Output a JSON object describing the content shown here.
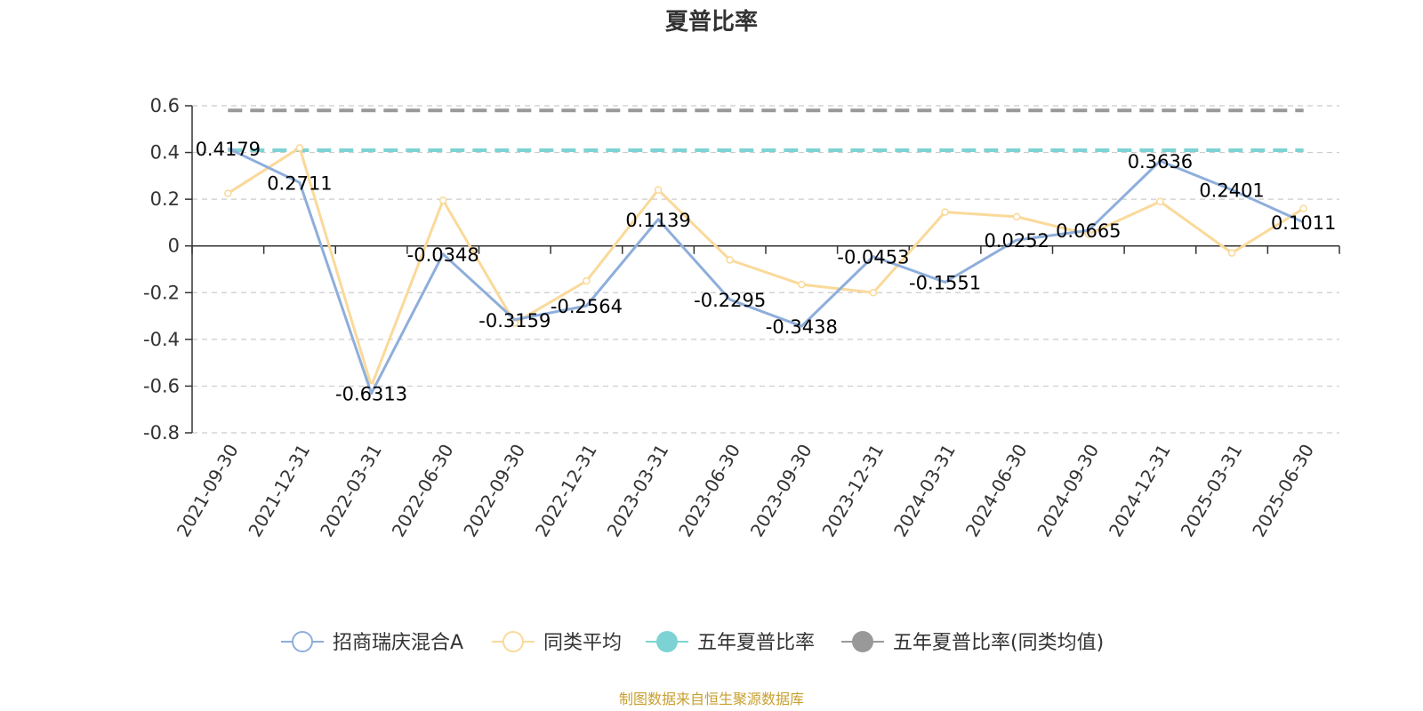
{
  "chart_data": {
    "type": "line",
    "title": "夏普比率",
    "categories": [
      "2021-09-30",
      "2021-12-31",
      "2022-03-31",
      "2022-06-30",
      "2022-09-30",
      "2022-12-31",
      "2023-03-31",
      "2023-06-30",
      "2023-09-30",
      "2023-12-31",
      "2024-03-31",
      "2024-06-30",
      "2024-09-30",
      "2024-12-31",
      "2025-03-31",
      "2025-06-30"
    ],
    "y_ticks": [
      "0.6",
      "0.4",
      "0.2",
      "0",
      "-0.2",
      "-0.4",
      "-0.6",
      "-0.8"
    ],
    "ylim": [
      -0.8,
      0.6
    ],
    "grid": true,
    "legend_position": "bottom",
    "series": [
      {
        "name": "招商瑞庆混合A",
        "color": "#8eaedb",
        "values": [
          0.4179,
          0.2711,
          -0.6313,
          -0.0348,
          -0.3159,
          -0.2564,
          0.1139,
          -0.2295,
          -0.3438,
          -0.0453,
          -0.1551,
          0.0252,
          0.0665,
          0.3636,
          0.2401,
          0.1011
        ],
        "labels": [
          "0.4179",
          "0.2711",
          "-0.6313",
          "-0.0348",
          "-0.3159",
          "-0.2564",
          "0.1139",
          "-0.2295",
          "-0.3438",
          "-0.0453",
          "-0.1551",
          "0.0252",
          "0.0665",
          "0.3636",
          "0.2401",
          "0.1011"
        ]
      },
      {
        "name": "同类平均",
        "color": "#fad99a",
        "values": [
          0.225,
          0.42,
          -0.6,
          0.195,
          -0.33,
          -0.15,
          0.24,
          -0.06,
          -0.165,
          -0.2,
          0.145,
          0.125,
          0.05,
          0.19,
          -0.03,
          0.16
        ]
      },
      {
        "name": "五年夏普比率",
        "color": "#7dd3d3",
        "style": "dashed",
        "value": 0.41
      },
      {
        "name": "五年夏普比率(同类均值)",
        "color": "#999999",
        "style": "dashed",
        "value": 0.58
      }
    ],
    "source": "制图数据来自恒生聚源数据库",
    "source_color": "#c8a030"
  }
}
